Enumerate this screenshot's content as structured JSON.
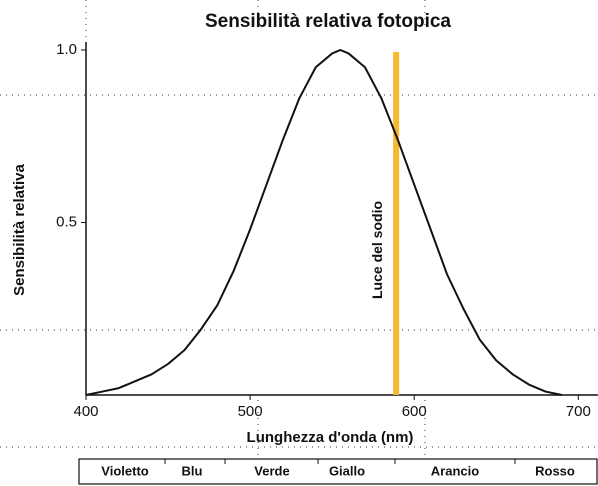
{
  "chart_data": {
    "type": "line",
    "title": "Sensibilità relativa fotopica",
    "x_label": "Lunghezza d'onda  (nm)",
    "y_label": "Sensibilità relativa",
    "x": [
      400,
      410,
      420,
      430,
      440,
      450,
      460,
      470,
      480,
      490,
      500,
      510,
      520,
      530,
      540,
      550,
      555,
      560,
      570,
      580,
      590,
      600,
      610,
      620,
      630,
      640,
      650,
      660,
      670,
      680,
      690
    ],
    "values": [
      0,
      0.01,
      0.02,
      0.04,
      0.06,
      0.09,
      0.13,
      0.19,
      0.26,
      0.36,
      0.48,
      0.61,
      0.74,
      0.86,
      0.95,
      0.99,
      1.0,
      0.99,
      0.95,
      0.86,
      0.74,
      0.61,
      0.48,
      0.35,
      0.25,
      0.16,
      0.1,
      0.06,
      0.03,
      0.01,
      0
    ],
    "color": "#111111",
    "xlim": [
      400,
      712
    ],
    "xticks": [
      400,
      500,
      600,
      700
    ],
    "ylim": [
      0,
      1
    ],
    "yticks": [
      0.5,
      {
        "value": 1,
        "label": "1.0"
      }
    ],
    "annotation": {
      "text": "Luce del sodio",
      "x": 589,
      "color": "#f5b82e"
    },
    "color_bands": [
      "Violetto",
      "Blu",
      "Verde",
      "Giallo",
      "Arancio",
      "Rosso"
    ]
  }
}
